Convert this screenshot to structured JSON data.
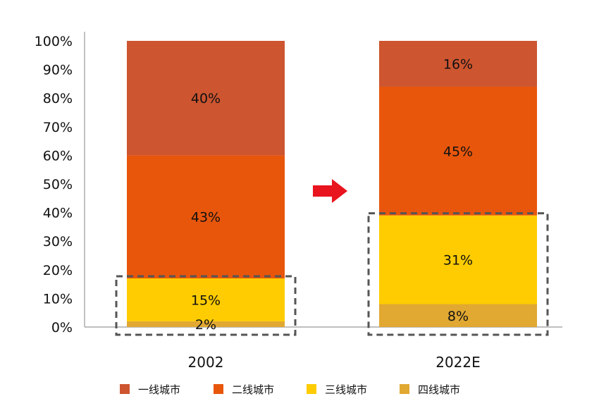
{
  "chart_data": {
    "type": "bar",
    "stacked": true,
    "categories": [
      "2002",
      "2022E"
    ],
    "series": [
      {
        "name": "四线城市",
        "values": [
          2,
          8
        ],
        "labels": [
          "2%",
          "8%"
        ],
        "color": "#E1A832"
      },
      {
        "name": "三线城市",
        "values": [
          15,
          31
        ],
        "labels": [
          "15%",
          "31%"
        ],
        "color": "#FECC00"
      },
      {
        "name": "二线城市",
        "values": [
          43,
          45
        ],
        "labels": [
          "43%",
          "45%"
        ],
        "color": "#E8560C"
      },
      {
        "name": "一线城市",
        "values": [
          40,
          16
        ],
        "labels": [
          "40%",
          "16%"
        ],
        "color": "#CD5530"
      }
    ],
    "yticks": [
      "0%",
      "10%",
      "20%",
      "30%",
      "40%",
      "50%",
      "60%",
      "70%",
      "80%",
      "90%",
      "100%"
    ],
    "ylim": [
      0,
      100
    ],
    "legend_position": "bottom",
    "arrow_color": "#E8141E",
    "highlight": "dashed box around 三线城市 + 四线城市 segments"
  }
}
